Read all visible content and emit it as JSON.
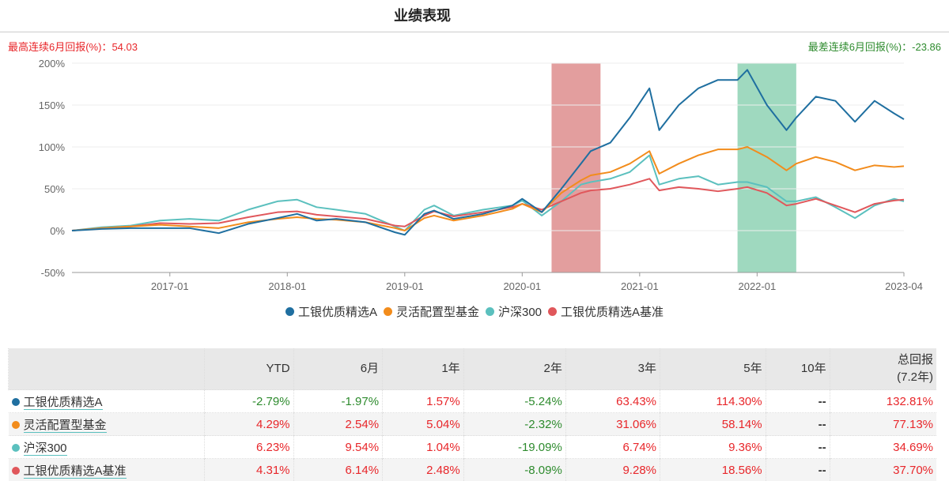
{
  "header": {
    "title": "业绩表现",
    "best_label": "最高连续6月回报(%)：54.03",
    "worst_label": "最差连续6月回报(%)：-23.86"
  },
  "chart_data": {
    "type": "line",
    "xlim": [
      "2016-03",
      "2023-04"
    ],
    "ylim": [
      -50,
      200
    ],
    "yticks": [
      "200%",
      "150%",
      "100%",
      "50%",
      "0%",
      "-50%"
    ],
    "ytick_values": [
      200,
      150,
      100,
      50,
      0,
      -50
    ],
    "xticks": [
      "2017-01",
      "2018-01",
      "2019-01",
      "2020-01",
      "2021-01",
      "2022-01",
      "2023-04"
    ],
    "grid": "horizontal",
    "legend": "bottom",
    "highlights": [
      {
        "start": "2020-04",
        "end": "2020-09",
        "color": "#e39e9e"
      },
      {
        "start": "2021-11",
        "end": "2022-05",
        "color": "#9fd9bf"
      }
    ],
    "x": [
      "2016-03",
      "2016-06",
      "2016-09",
      "2016-12",
      "2017-03",
      "2017-06",
      "2017-09",
      "2017-12",
      "2018-02",
      "2018-04",
      "2018-06",
      "2018-09",
      "2018-12",
      "2019-01",
      "2019-03",
      "2019-04",
      "2019-06",
      "2019-09",
      "2019-12",
      "2020-01",
      "2020-03",
      "2020-05",
      "2020-07",
      "2020-08",
      "2020-10",
      "2020-12",
      "2021-02",
      "2021-03",
      "2021-05",
      "2021-07",
      "2021-09",
      "2021-11",
      "2021-12",
      "2022-02",
      "2022-04",
      "2022-05",
      "2022-07",
      "2022-09",
      "2022-11",
      "2023-01",
      "2023-03",
      "2023-04"
    ],
    "series": [
      {
        "name": "工银优质精选A",
        "color": "#1f6fa0",
        "values": [
          0,
          2,
          3,
          3,
          3,
          -3,
          8,
          15,
          20,
          12,
          14,
          10,
          -2,
          -5,
          20,
          24,
          14,
          20,
          30,
          38,
          22,
          50,
          80,
          95,
          105,
          135,
          170,
          120,
          150,
          170,
          180,
          180,
          192,
          150,
          120,
          135,
          160,
          155,
          130,
          155,
          140,
          133
        ]
      },
      {
        "name": "灵活配置型基金",
        "color": "#f28c1c",
        "values": [
          0,
          3,
          5,
          7,
          5,
          3,
          10,
          14,
          16,
          14,
          13,
          10,
          3,
          0,
          15,
          18,
          12,
          18,
          26,
          32,
          22,
          45,
          60,
          66,
          70,
          80,
          95,
          68,
          80,
          90,
          97,
          97,
          100,
          88,
          72,
          80,
          88,
          82,
          72,
          78,
          76,
          77
        ]
      },
      {
        "name": "沪深300",
        "color": "#5bc0be",
        "values": [
          0,
          4,
          6,
          12,
          14,
          12,
          25,
          35,
          37,
          28,
          25,
          20,
          5,
          0,
          25,
          30,
          18,
          25,
          30,
          36,
          18,
          35,
          55,
          58,
          62,
          70,
          90,
          55,
          62,
          65,
          55,
          58,
          58,
          52,
          35,
          35,
          40,
          28,
          15,
          30,
          38,
          35
        ]
      },
      {
        "name": "工银优质精选A基准",
        "color": "#e0575b",
        "values": [
          0,
          3,
          5,
          9,
          8,
          9,
          16,
          22,
          23,
          19,
          17,
          14,
          6,
          5,
          18,
          23,
          17,
          22,
          28,
          32,
          25,
          35,
          45,
          48,
          50,
          55,
          62,
          48,
          52,
          50,
          47,
          50,
          52,
          45,
          30,
          32,
          38,
          30,
          22,
          32,
          36,
          37
        ]
      }
    ]
  },
  "table": {
    "headers": [
      "",
      "YTD",
      "6月",
      "1年",
      "2年",
      "3年",
      "5年",
      "10年",
      "总回报",
      "(7.2年)"
    ],
    "rows": [
      {
        "name": "工银优质精选A",
        "color": "#1f6fa0",
        "values": [
          "-2.79%",
          "-1.97%",
          "1.57%",
          "-5.24%",
          "63.43%",
          "114.30%",
          "--",
          "132.81%"
        ]
      },
      {
        "name": "灵活配置型基金",
        "color": "#f28c1c",
        "values": [
          "4.29%",
          "2.54%",
          "5.04%",
          "-2.32%",
          "31.06%",
          "58.14%",
          "--",
          "77.13%"
        ]
      },
      {
        "name": "沪深300",
        "color": "#5bc0be",
        "values": [
          "6.23%",
          "9.54%",
          "1.04%",
          "-19.09%",
          "6.74%",
          "9.36%",
          "--",
          "34.69%"
        ]
      },
      {
        "name": "工银优质精选A基准",
        "color": "#e0575b",
        "values": [
          "4.31%",
          "6.14%",
          "2.48%",
          "-8.09%",
          "9.28%",
          "18.56%",
          "--",
          "37.70%"
        ]
      }
    ]
  }
}
